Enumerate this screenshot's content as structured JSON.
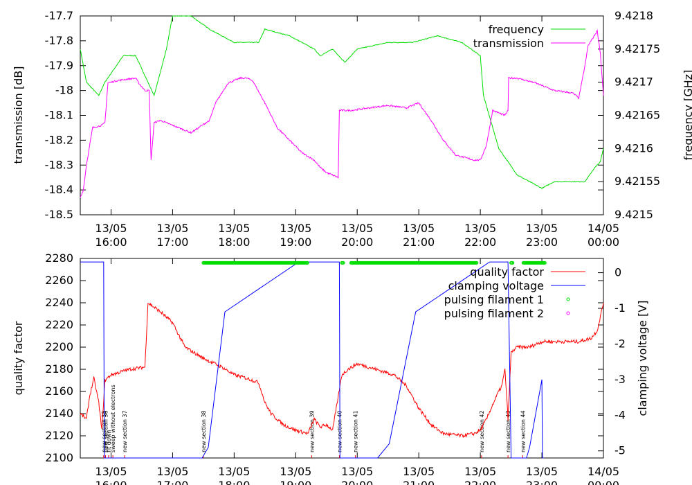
{
  "chart_data": [
    {
      "type": "line",
      "ylabel": "transmission [dB]",
      "y2label": "frequency [GHz]",
      "xlim_hours": [
        15.5,
        24.0
      ],
      "ylim": [
        -18.5,
        -17.7
      ],
      "y2lim": [
        9.4215,
        9.4218
      ],
      "yticks": [
        "-17.7",
        "-17.8",
        "-17.9",
        "-18",
        "-18.1",
        "-18.2",
        "-18.3",
        "-18.4",
        "-18.5"
      ],
      "y2ticks": [
        "9.4218",
        "9.42175",
        "9.4217",
        "9.42165",
        "9.4216",
        "9.42155",
        "9.4215"
      ],
      "x_date_labels": [
        "13/05",
        "13/05",
        "13/05",
        "13/05",
        "13/05",
        "13/05",
        "13/05",
        "13/05",
        "14/05"
      ],
      "x_time_labels": [
        "16:00",
        "17:00",
        "18:00",
        "19:00",
        "20:00",
        "21:00",
        "22:00",
        "23:00",
        "00:00"
      ],
      "legend_position": "top-right",
      "series": [
        {
          "name": "frequency",
          "color": "#00dd00",
          "axis": "right",
          "x": [
            15.5,
            15.6,
            15.8,
            15.9,
            16.2,
            16.4,
            16.6,
            16.7,
            16.9,
            17.0,
            17.3,
            17.6,
            18.0,
            18.4,
            18.5,
            18.9,
            19.3,
            19.4,
            19.6,
            19.7,
            19.8,
            20.0,
            20.5,
            20.9,
            21.3,
            21.7,
            22.0,
            22.05,
            22.3,
            22.6,
            22.8,
            23.0,
            23.2,
            23.5,
            23.7,
            23.85,
            23.95,
            24.0
          ],
          "y": [
            9.42175,
            9.4217,
            9.42168,
            9.4217,
            9.42174,
            9.42174,
            9.4217,
            9.42168,
            9.42175,
            9.4218,
            9.4218,
            9.42178,
            9.42176,
            9.42176,
            9.42178,
            9.42177,
            9.42175,
            9.42174,
            9.42175,
            9.42174,
            9.42173,
            9.42175,
            9.42176,
            9.42176,
            9.42177,
            9.42176,
            9.42174,
            9.42168,
            9.4216,
            9.42156,
            9.42155,
            9.42154,
            9.42155,
            9.42155,
            9.42155,
            9.42157,
            9.42158,
            9.4216
          ]
        },
        {
          "name": "transmission",
          "color": "#ff00ff",
          "axis": "left",
          "x": [
            15.5,
            15.55,
            15.6,
            15.7,
            15.85,
            15.9,
            15.95,
            16.1,
            16.4,
            16.45,
            16.55,
            16.62,
            16.65,
            16.7,
            16.8,
            17.1,
            17.3,
            17.6,
            17.7,
            17.9,
            18.1,
            18.2,
            18.3,
            18.5,
            18.7,
            18.9,
            19.1,
            19.3,
            19.4,
            19.5,
            19.69,
            19.71,
            19.9,
            20.5,
            20.8,
            21.0,
            21.2,
            21.4,
            21.6,
            21.9,
            22.0,
            22.1,
            22.2,
            22.4,
            22.45,
            22.46,
            22.6,
            22.9,
            23.2,
            23.5,
            23.6,
            23.7,
            23.75,
            23.8,
            23.9,
            23.95,
            24.0
          ],
          "y": [
            -18.43,
            -18.4,
            -18.3,
            -18.15,
            -18.14,
            -18.13,
            -17.97,
            -17.96,
            -17.95,
            -17.97,
            -18.0,
            -18.0,
            -18.28,
            -18.13,
            -18.12,
            -18.15,
            -18.17,
            -18.12,
            -18.05,
            -17.97,
            -17.95,
            -17.95,
            -17.96,
            -18.05,
            -18.15,
            -18.2,
            -18.25,
            -18.28,
            -18.31,
            -18.33,
            -18.35,
            -18.08,
            -18.08,
            -18.06,
            -18.07,
            -18.05,
            -18.12,
            -18.2,
            -18.26,
            -18.28,
            -18.28,
            -18.22,
            -18.08,
            -18.1,
            -18.08,
            -17.95,
            -17.95,
            -17.97,
            -18.0,
            -18.01,
            -18.03,
            -17.9,
            -17.82,
            -17.8,
            -17.76,
            -17.85,
            -18.02
          ]
        }
      ]
    },
    {
      "type": "line",
      "ylabel": "quality factor",
      "y2label": "clamping voltage [V]",
      "xlim_hours": [
        15.5,
        24.0
      ],
      "ylim": [
        2100,
        2280
      ],
      "y2lim": [
        -5.2,
        0.4
      ],
      "yticks": [
        "2280",
        "2260",
        "2240",
        "2220",
        "2200",
        "2180",
        "2160",
        "2140",
        "2120",
        "2100"
      ],
      "y2ticks": [
        "0",
        "-1",
        "-2",
        "-3",
        "-4",
        "-5"
      ],
      "x_date_labels": [
        "13/05",
        "13/05",
        "13/05",
        "13/05",
        "13/05",
        "13/05",
        "13/05",
        "13/05",
        "14/05"
      ],
      "x_time_labels": [
        "16:00",
        "17:00",
        "18:00",
        "19:00",
        "20:00",
        "21:00",
        "22:00",
        "23:00",
        "00:00"
      ],
      "legend_position": "top-right",
      "series": [
        {
          "name": "quality factor",
          "color": "#ff0000",
          "axis": "left",
          "x": [
            15.5,
            15.6,
            15.65,
            15.72,
            15.8,
            15.85,
            15.9,
            16.0,
            16.3,
            16.55,
            16.6,
            16.8,
            17.0,
            17.2,
            17.5,
            17.8,
            18.0,
            18.2,
            18.4,
            18.5,
            18.6,
            18.8,
            19.0,
            19.2,
            19.3,
            19.4,
            19.5,
            19.6,
            19.75,
            19.85,
            20.0,
            20.3,
            20.6,
            20.8,
            21.0,
            21.2,
            21.4,
            21.7,
            21.9,
            22.0,
            22.1,
            22.2,
            22.3,
            22.35,
            22.4,
            22.45,
            22.5,
            22.6,
            22.8,
            23.0,
            23.3,
            23.6,
            23.8,
            23.9,
            24.0
          ],
          "y": [
            2140,
            2135,
            2155,
            2172,
            2150,
            2125,
            2170,
            2175,
            2180,
            2182,
            2240,
            2232,
            2222,
            2200,
            2190,
            2182,
            2175,
            2172,
            2168,
            2150,
            2140,
            2130,
            2125,
            2122,
            2135,
            2128,
            2130,
            2125,
            2175,
            2180,
            2185,
            2180,
            2175,
            2165,
            2145,
            2130,
            2122,
            2120,
            2122,
            2125,
            2135,
            2148,
            2160,
            2165,
            2180,
            2135,
            2195,
            2200,
            2200,
            2205,
            2205,
            2205,
            2208,
            2215,
            2240
          ]
        },
        {
          "name": "clamping voltage",
          "color": "#0000ff",
          "axis": "right",
          "x": [
            15.5,
            15.88,
            15.89,
            17.48,
            17.58,
            17.85,
            19.05,
            19.71,
            19.72,
            20.33,
            20.52,
            20.95,
            22.15,
            22.45,
            22.5,
            22.75,
            22.8,
            23.0,
            23.01,
            23.03
          ],
          "y": [
            0.3,
            0.3,
            -5.2,
            -5.2,
            -4.9,
            -1.1,
            0.3,
            0.3,
            -5.2,
            -5.2,
            -4.8,
            -1.1,
            0.3,
            0.3,
            -5.2,
            -5.2,
            -4.9,
            -3.0,
            -5.2,
            -5.2
          ]
        },
        {
          "name": "pulsing filament 1",
          "color": "#00dd00",
          "axis": "left",
          "marker": "circle",
          "segments_hours": [
            [
              17.5,
              19.2
            ],
            [
              19.75,
              19.78
            ],
            [
              19.9,
              21.95
            ],
            [
              22.5,
              22.53
            ],
            [
              22.7,
              23.05
            ]
          ],
          "y": 2276
        },
        {
          "name": "pulsing filament 2",
          "color": "#ff00ff",
          "axis": "left",
          "marker": "circle",
          "segments_hours": [],
          "y": 2276
        }
      ],
      "annotations": [
        {
          "text": "new section 35",
          "x": 15.88
        },
        {
          "text": "new section 36",
          "x": 15.91
        },
        {
          "text": "fit down",
          "x": 15.96
        },
        {
          "text": "sweep without electrons",
          "x": 16.03
        },
        {
          "text": "new section 37",
          "x": 16.22
        },
        {
          "text": "new section 38",
          "x": 17.5
        },
        {
          "text": "new section 39",
          "x": 19.26
        },
        {
          "text": "new section 40",
          "x": 19.71
        },
        {
          "text": "new section 41",
          "x": 19.97
        },
        {
          "text": "new section 42",
          "x": 22.02
        },
        {
          "text": "new section 43",
          "x": 22.45
        },
        {
          "text": "new section 44",
          "x": 22.69
        }
      ]
    }
  ]
}
